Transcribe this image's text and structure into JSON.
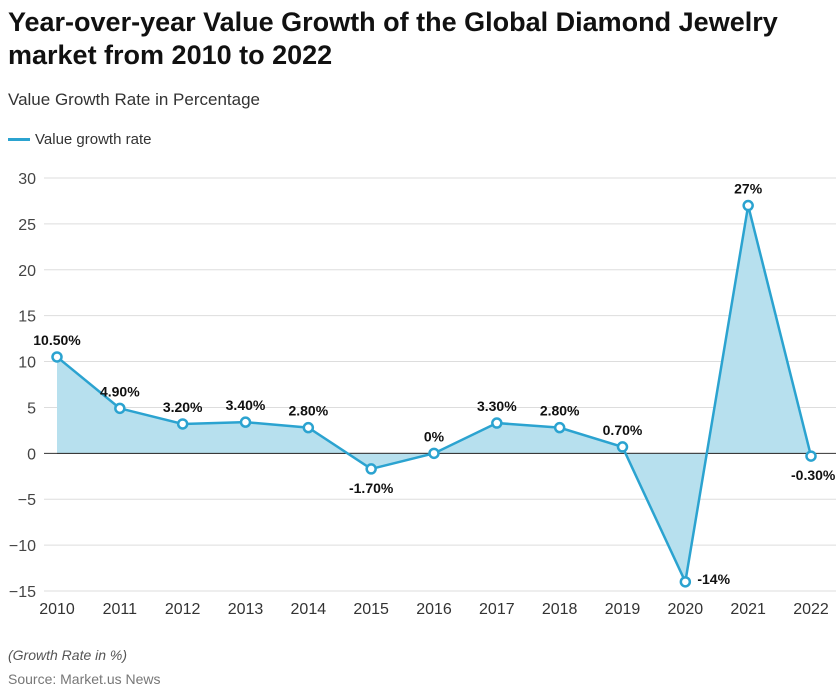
{
  "chart_data": {
    "type": "line",
    "title": "Year-over-year Value Growth of the Global Diamond Jewelry market from 2010 to 2022",
    "subtitle": "Value Growth Rate in Percentage",
    "legend": {
      "entries": [
        "Value growth rate"
      ],
      "placement": "top-left"
    },
    "categories": [
      "2010",
      "2011",
      "2012",
      "2013",
      "2014",
      "2015",
      "2016",
      "2017",
      "2018",
      "2019",
      "2020",
      "2021",
      "2022"
    ],
    "series": [
      {
        "name": "Value growth rate",
        "values": [
          10.5,
          4.9,
          3.2,
          3.4,
          2.8,
          -1.7,
          0,
          3.3,
          2.8,
          0.7,
          -14,
          27,
          -0.3
        ],
        "labels": [
          "10.50%",
          "4.90%",
          "3.20%",
          "3.40%",
          "2.80%",
          "-1.70%",
          "0%",
          "3.30%",
          "2.80%",
          "0.70%",
          "-14%",
          "27%",
          "-0.30%"
        ]
      }
    ],
    "ylim": [
      -15,
      30
    ],
    "yticks": [
      "30",
      "25",
      "20",
      "15",
      "10",
      "5",
      "0",
      "−5",
      "−10",
      "−15"
    ],
    "ytick_values": [
      30,
      25,
      20,
      15,
      10,
      5,
      0,
      -5,
      -10,
      -15
    ],
    "grid": true,
    "area_fill": true,
    "colors": {
      "line": "#2ba3d0",
      "fill": "#b7e0ee"
    },
    "note": "(Growth Rate in %)",
    "source": "Source: Market.us News"
  }
}
